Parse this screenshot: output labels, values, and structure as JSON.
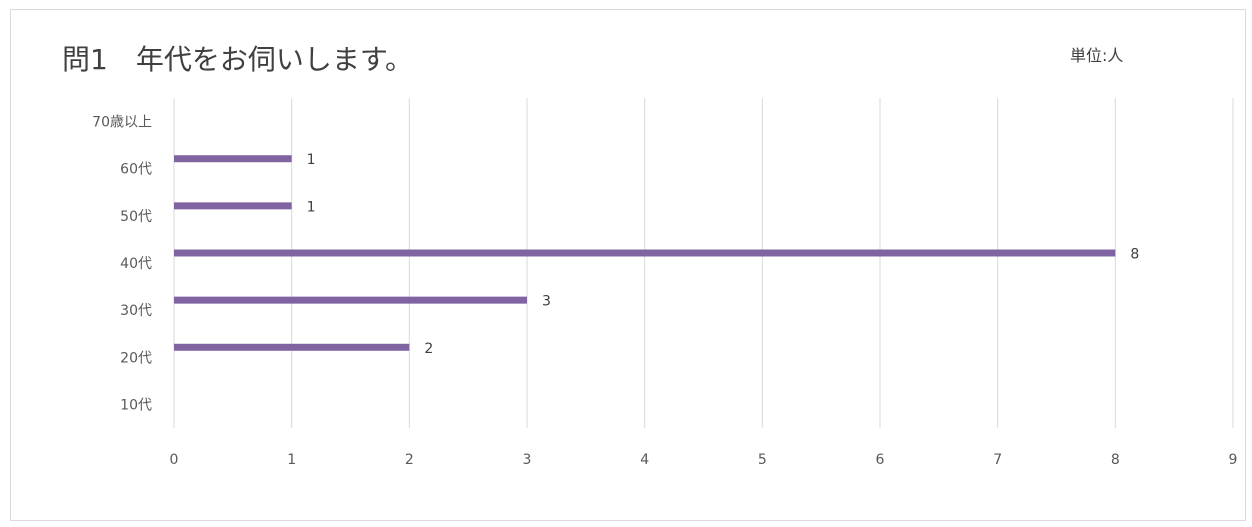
{
  "chart_data": {
    "type": "bar",
    "orientation": "horizontal",
    "title": "問1　年代をお伺いします。",
    "unit_label": "単位:人",
    "categories": [
      "10代",
      "20代",
      "30代",
      "40代",
      "50代",
      "60代",
      "70歳以上"
    ],
    "values": [
      null,
      2,
      3,
      8,
      1,
      1,
      null
    ],
    "data_labels": [
      "",
      "2",
      "3",
      "8",
      "1",
      "1",
      ""
    ],
    "xlim": [
      0,
      9
    ],
    "x_ticks": [
      0,
      1,
      2,
      3,
      4,
      5,
      6,
      7,
      8,
      9
    ],
    "grid": true,
    "legend": "none",
    "bar_color": "#8064a2",
    "grid_color": "#d9d9d9"
  }
}
